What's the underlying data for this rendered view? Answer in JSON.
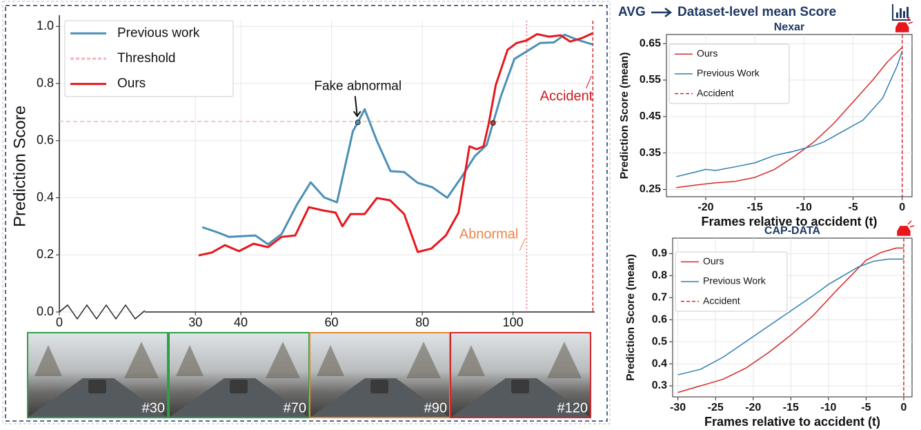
{
  "header": {
    "avg": "AVG",
    "title": "Dataset-level mean Score"
  },
  "frames": [
    "#30",
    "#70",
    "#90",
    "#120"
  ],
  "chart_data": [
    {
      "type": "line",
      "ylabel": "Prediction Score",
      "xlim": [
        0,
        118
      ],
      "ylim": [
        0,
        1.02
      ],
      "xticks": [
        0,
        30,
        40,
        60,
        80,
        100
      ],
      "yticks": [
        {
          "value": 0,
          "label": "0.0"
        },
        0.2,
        0.4,
        0.6,
        0.8,
        {
          "value": 1,
          "label": "1.0"
        }
      ],
      "grid": true,
      "series": [
        {
          "name": "Previous work",
          "color": "#4a90b5",
          "x": [
            31.5,
            35,
            37.4,
            43.2,
            46,
            49,
            52.4,
            55.4,
            58.4,
            61.2,
            64.7,
            65.8,
            67.3,
            70,
            73,
            76,
            79,
            82.2,
            85.5,
            88.6,
            91.6,
            94.2,
            95.6,
            97.3,
            100.3,
            106,
            109,
            111.4,
            114,
            117.5
          ],
          "values": [
            0.297,
            0.278,
            0.263,
            0.268,
            0.237,
            0.273,
            0.377,
            0.454,
            0.401,
            0.384,
            0.633,
            0.664,
            0.71,
            0.599,
            0.493,
            0.49,
            0.452,
            0.437,
            0.4,
            0.471,
            0.546,
            0.585,
            0.662,
            0.754,
            0.886,
            0.942,
            0.944,
            0.971,
            0.954,
            0.937
          ]
        },
        {
          "name": "Ours",
          "color": "#e8161b",
          "x": [
            30.7,
            33.6,
            36.5,
            39.6,
            42.8,
            46,
            49,
            52,
            55,
            58.3,
            60.9,
            62.4,
            64.2,
            67.3,
            70,
            72.9,
            76,
            79,
            82,
            85.2,
            88,
            90.4,
            92,
            93.5,
            94.7,
            96.2,
            98.8,
            100.8,
            103,
            105.3,
            108,
            110.5,
            112.6,
            115.2,
            117.5
          ],
          "values": [
            0.198,
            0.208,
            0.234,
            0.213,
            0.239,
            0.227,
            0.263,
            0.268,
            0.367,
            0.355,
            0.348,
            0.3,
            0.343,
            0.343,
            0.399,
            0.391,
            0.343,
            0.21,
            0.222,
            0.268,
            0.348,
            0.58,
            0.57,
            0.58,
            0.664,
            0.795,
            0.918,
            0.942,
            0.951,
            0.973,
            0.964,
            0.969,
            0.947,
            0.959,
            0.976
          ]
        }
      ],
      "hlines": [
        {
          "name": "Threshold",
          "value": 0.667,
          "color": "#f2b3b8"
        }
      ],
      "vlines": [
        {
          "name": "Accident",
          "value": 117.6,
          "color": "#d62728",
          "label_color": "#d0191e"
        },
        {
          "name": "Abnormal",
          "value": 103,
          "color": "#e8717a",
          "label_color": "#f0854a"
        }
      ],
      "markers": [
        {
          "x": 65.8,
          "y": 0.664,
          "color": "#4a90b5",
          "label": "Fake abnormal"
        },
        {
          "x": 95.6,
          "y": 0.662,
          "color": "#c0392b"
        }
      ]
    },
    {
      "type": "line",
      "title": "Nexar",
      "xlabel": "Frames relative to accident (t)",
      "ylabel": "Prediction Score (mean)",
      "xlim": [
        -24,
        1
      ],
      "ylim": [
        0.23,
        0.675
      ],
      "xticks": [
        -20,
        -15,
        -10,
        -5,
        0
      ],
      "yticks": [
        0.25,
        0.35,
        0.45,
        0.55,
        0.65
      ],
      "grid": true,
      "series": [
        {
          "name": "Ours",
          "color": "#d62728",
          "x": [
            -23,
            -21,
            -19,
            -17,
            -15,
            -13,
            -11,
            -9,
            -7,
            -5,
            -3,
            -1.5,
            0
          ],
          "values": [
            0.255,
            0.262,
            0.268,
            0.272,
            0.283,
            0.305,
            0.34,
            0.38,
            0.43,
            0.49,
            0.55,
            0.6,
            0.64
          ]
        },
        {
          "name": "Previous Work",
          "color": "#2f7fb0",
          "x": [
            -23,
            -21,
            -20,
            -19,
            -17,
            -15,
            -13,
            -11,
            -9,
            -8,
            -6,
            -4,
            -2,
            -0.5,
            0
          ],
          "values": [
            0.285,
            0.298,
            0.305,
            0.302,
            0.312,
            0.323,
            0.343,
            0.355,
            0.37,
            0.38,
            0.41,
            0.44,
            0.5,
            0.59,
            0.63
          ]
        }
      ],
      "vlines": [
        {
          "name": "Accident",
          "value": 0,
          "color": "#d62728"
        }
      ]
    },
    {
      "type": "line",
      "title": "CAP-DATA",
      "xlabel": "Frames relative to accident (t)",
      "ylabel": "Prediction Score (mean)",
      "xlim": [
        -30.7,
        1.1
      ],
      "ylim": [
        0.25,
        0.97
      ],
      "xticks": [
        -30,
        -25,
        -20,
        -15,
        -10,
        -5,
        0
      ],
      "yticks": [
        0.3,
        0.4,
        0.5,
        0.6,
        0.7,
        0.8,
        0.9
      ],
      "grid": true,
      "series": [
        {
          "name": "Ours",
          "color": "#d62728",
          "x": [
            -30,
            -27,
            -24,
            -21,
            -18,
            -15,
            -12,
            -9,
            -7,
            -5,
            -3,
            -1,
            0
          ],
          "values": [
            0.27,
            0.3,
            0.33,
            0.38,
            0.45,
            0.53,
            0.62,
            0.73,
            0.8,
            0.87,
            0.905,
            0.925,
            0.925
          ]
        },
        {
          "name": "Previous Work",
          "color": "#2f7fb0",
          "x": [
            -30,
            -27,
            -24,
            -21,
            -18,
            -15,
            -12,
            -10,
            -8,
            -6,
            -4,
            -2,
            0
          ],
          "values": [
            0.35,
            0.375,
            0.43,
            0.5,
            0.57,
            0.64,
            0.71,
            0.76,
            0.8,
            0.84,
            0.865,
            0.875,
            0.875
          ]
        }
      ],
      "vlines": [
        {
          "name": "Accident",
          "value": 0,
          "color": "#d62728"
        }
      ]
    }
  ]
}
